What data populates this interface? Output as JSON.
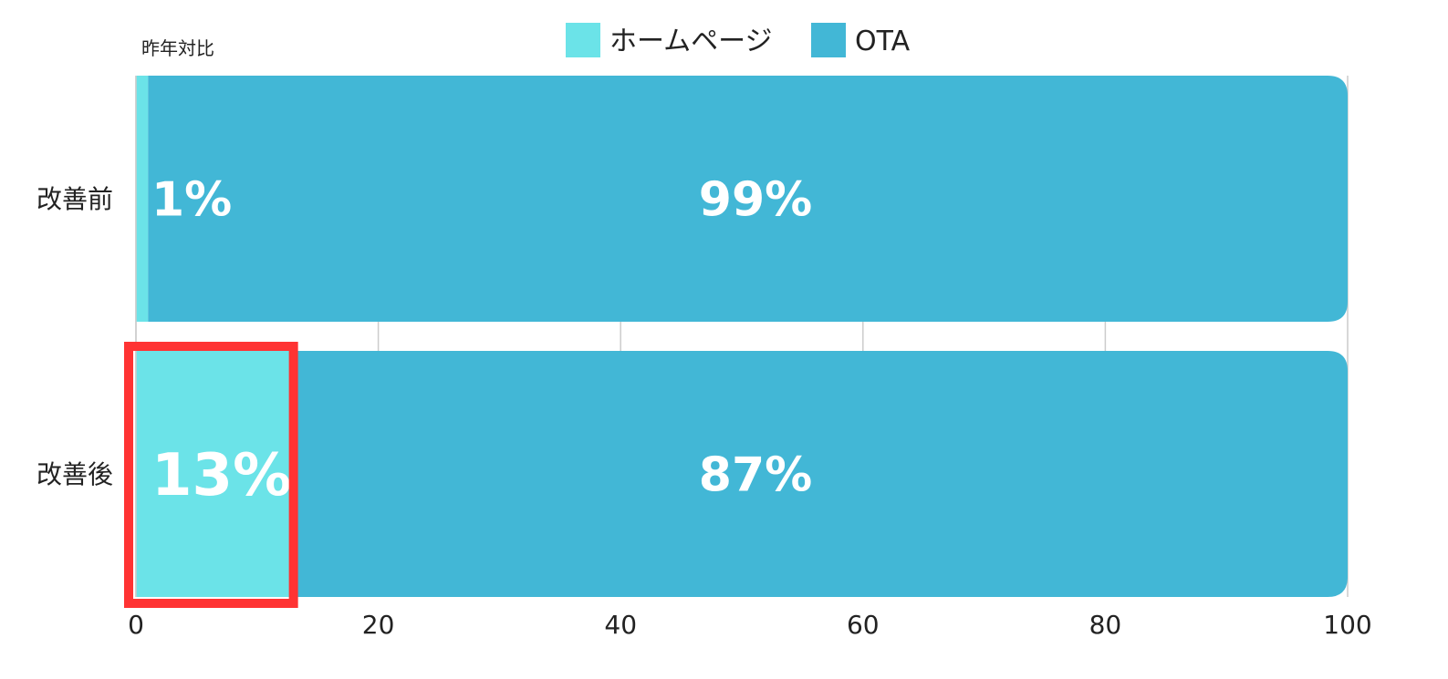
{
  "chart_data": {
    "type": "bar",
    "orientation": "horizontal",
    "stacked": true,
    "subtitle": "昨年対比",
    "categories": [
      "改善前",
      "改善後"
    ],
    "series": [
      {
        "name": "ホームページ",
        "color": "#6BE3E8",
        "values": [
          1,
          13
        ],
        "labels": [
          "1%",
          "13%"
        ]
      },
      {
        "name": "OTA",
        "color": "#42B7D6",
        "values": [
          99,
          87
        ],
        "labels": [
          "99%",
          "87%"
        ]
      }
    ],
    "xlim": [
      0,
      100
    ],
    "xticks": [
      "0",
      "20",
      "40",
      "60",
      "80",
      "100"
    ],
    "grid": true,
    "legend": "top-center",
    "highlight": {
      "category": "改善後",
      "series": "ホームページ",
      "label_color": "#FF3333",
      "box_color": "#FF3333"
    }
  }
}
